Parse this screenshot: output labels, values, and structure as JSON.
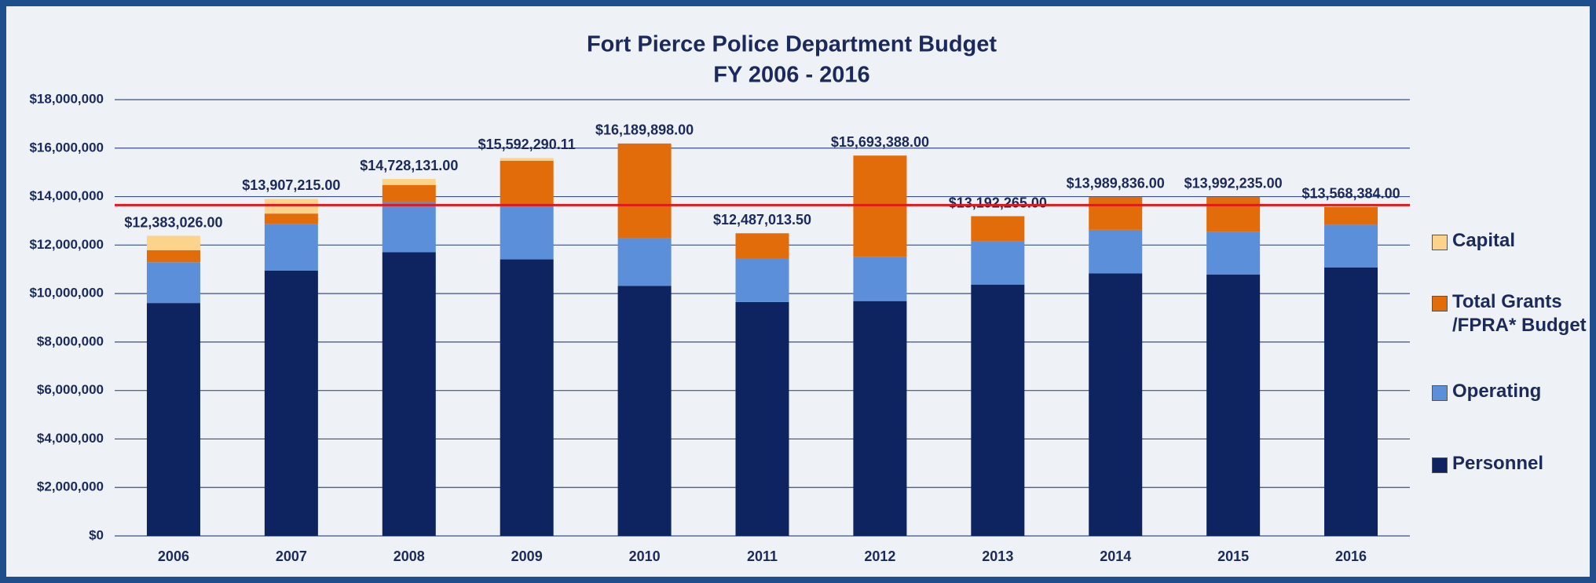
{
  "chart_data": {
    "type": "stacked_bar",
    "title": "Fort Pierce Police Department Budget",
    "subtitle": "FY 2006 - 2016",
    "categories": [
      "2006",
      "2007",
      "2008",
      "2009",
      "2010",
      "2011",
      "2012",
      "2013",
      "2014",
      "2015",
      "2016"
    ],
    "series": [
      {
        "name": "Personnel",
        "color": "#0d2461",
        "values": [
          9610000,
          10950000,
          11710000,
          11410000,
          10320000,
          9650000,
          9690000,
          10370000,
          10830000,
          10780000,
          11080000
        ]
      },
      {
        "name": "Operating",
        "color": "#5b8fd9",
        "values": [
          1680000,
          1930000,
          2050000,
          2230000,
          1980000,
          1810000,
          1810000,
          1800000,
          1800000,
          1770000,
          1760000
        ]
      },
      {
        "name": "Total Grants /FPRA* Budget",
        "color": "#e36c0a",
        "values": [
          500000,
          420000,
          720000,
          1840000,
          3890000,
          1027000,
          4193000,
          1022000,
          1360000,
          1442000,
          728000
        ]
      },
      {
        "name": "Capital",
        "color": "#fbd38b",
        "values": [
          593000,
          607000,
          248000,
          112000,
          0,
          0,
          0,
          0,
          0,
          0,
          0
        ]
      }
    ],
    "totals": [
      12383026.0,
      13907215.0,
      14728131.0,
      15592290.11,
      16189898.0,
      12487013.5,
      15693388.0,
      13192265.0,
      13989836.0,
      13992235.0,
      13568384.0
    ],
    "total_labels": [
      "$12,383,026.00",
      "$13,907,215.00",
      "$14,728,131.00",
      "$15,592,290.11",
      "$16,189,898.00",
      "$12,487,013.50",
      "$15,693,388.00",
      "$13,192,265.00",
      "$13,989,836.00",
      "$13,992,235.00",
      "$13,568,384.00"
    ],
    "reference_line": {
      "value": 13650000,
      "color": "#e0191b"
    },
    "ylim": [
      0,
      18000000
    ],
    "yticks": [
      {
        "value": 0,
        "label": "$0"
      },
      {
        "value": 2000000,
        "label": "$2,000,000"
      },
      {
        "value": 4000000,
        "label": "$4,000,000"
      },
      {
        "value": 6000000,
        "label": "$6,000,000"
      },
      {
        "value": 8000000,
        "label": "$8,000,000"
      },
      {
        "value": 10000000,
        "label": "$10,000,000"
      },
      {
        "value": 12000000,
        "label": "$12,000,000"
      },
      {
        "value": 14000000,
        "label": "$14,000,000"
      },
      {
        "value": 16000000,
        "label": "$16,000,000"
      },
      {
        "value": 18000000,
        "label": "$18,000,000"
      }
    ],
    "grid": true,
    "legend": "right"
  }
}
